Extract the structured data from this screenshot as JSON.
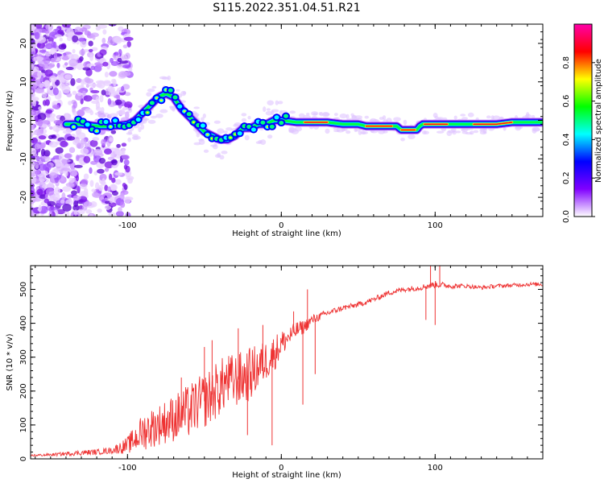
{
  "figure_title": "S115.2022.351.04.51.R21",
  "chart_data": [
    {
      "type": "heatmap",
      "title": "",
      "xlabel": "Height of straight line (km)",
      "ylabel": "Frequency (Hz)",
      "xlim": [
        -163,
        170
      ],
      "ylim": [
        -25,
        25
      ],
      "xticks": [
        -100,
        0,
        100
      ],
      "xtick_labels": [
        "-100",
        "0",
        "100"
      ],
      "yticks": [
        -20,
        -10,
        0,
        10,
        20
      ],
      "ytick_labels": [
        "-20",
        "-10",
        "0",
        "10",
        "20"
      ],
      "grid": false,
      "ridge": {
        "x": [
          -140,
          -130,
          -120,
          -110,
          -100,
          -95,
          -90,
          -85,
          -80,
          -75,
          -70,
          -65,
          -60,
          -55,
          -50,
          -45,
          -40,
          -35,
          -30,
          -25,
          -20,
          -15,
          -10,
          -5,
          0,
          10,
          20,
          30,
          40,
          50,
          55,
          60,
          65,
          70,
          75,
          78,
          80,
          85,
          88,
          90,
          92,
          95,
          100,
          110,
          120,
          130,
          140,
          150,
          160,
          170
        ],
        "y": [
          -1,
          -1,
          -1.5,
          -1.5,
          -1,
          0,
          2,
          4,
          6,
          7,
          6,
          3,
          1,
          -1,
          -3,
          -4,
          -5,
          -5,
          -4,
          -2,
          -2,
          -1,
          -1,
          0,
          0,
          -0.5,
          -0.5,
          -0.5,
          -1,
          -1,
          -1.5,
          -1.5,
          -1.5,
          -1.5,
          -1.5,
          -2.5,
          -2.5,
          -2.5,
          -2.5,
          -1.5,
          -1,
          -1,
          -1,
          -1,
          -1,
          -1,
          -1,
          -0.5,
          -0.5,
          -0.5
        ]
      },
      "colorbar": {
        "label": "Normalized spectral amplitude",
        "range": [
          0,
          1
        ],
        "ticks": [
          0,
          0.2,
          0.4,
          0.6,
          0.8
        ],
        "tick_labels": [
          "0.0",
          "0.2",
          "0.4",
          "0.6",
          "0.8"
        ],
        "colormap": [
          "#ffffff",
          "#8000ff",
          "#0000ff",
          "#00ffff",
          "#00ff00",
          "#ffff00",
          "#ff0000",
          "#ff00aa"
        ]
      }
    },
    {
      "type": "line",
      "title": "",
      "xlabel": "Height of straight line (km)",
      "ylabel": "SNR (10 * v/v)",
      "xlim": [
        -163,
        170
      ],
      "ylim": [
        0,
        570
      ],
      "xticks": [
        -100,
        0,
        100
      ],
      "xtick_labels": [
        "-100",
        "0",
        "100"
      ],
      "yticks": [
        0,
        100,
        200,
        300,
        400,
        500
      ],
      "ytick_labels": [
        "0",
        "100",
        "200",
        "300",
        "400",
        "500"
      ],
      "grid": false,
      "series": [
        {
          "name": "",
          "color": "#ee3333",
          "x": [
            -163,
            -150,
            -140,
            -130,
            -120,
            -110,
            -100,
            -95,
            -90,
            -85,
            -80,
            -75,
            -70,
            -65,
            -60,
            -55,
            -50,
            -45,
            -40,
            -35,
            -30,
            -25,
            -20,
            -15,
            -10,
            -5,
            0,
            5,
            10,
            15,
            20,
            25,
            30,
            40,
            50,
            60,
            65,
            70,
            80,
            90,
            95,
            100,
            110,
            120,
            130,
            140,
            150,
            160,
            170
          ],
          "y": [
            10,
            12,
            15,
            18,
            20,
            25,
            40,
            60,
            80,
            90,
            100,
            110,
            120,
            130,
            140,
            160,
            170,
            190,
            210,
            230,
            230,
            240,
            250,
            270,
            290,
            310,
            340,
            360,
            380,
            390,
            410,
            420,
            430,
            445,
            455,
            470,
            480,
            490,
            500,
            505,
            510,
            515,
            510,
            510,
            505,
            510,
            512,
            515,
            515
          ],
          "noise": [
            3,
            4,
            6,
            8,
            8,
            10,
            25,
            40,
            55,
            60,
            60,
            65,
            70,
            75,
            80,
            80,
            80,
            85,
            85,
            80,
            80,
            80,
            80,
            70,
            60,
            55,
            40,
            30,
            25,
            20,
            15,
            12,
            10,
            8,
            8,
            8,
            8,
            8,
            8,
            8,
            10,
            10,
            8,
            6,
            6,
            6,
            6,
            6,
            6
          ],
          "spikes": [
            {
              "x": -65,
              "y": 240
            },
            {
              "x": -50,
              "y": 330
            },
            {
              "x": -45,
              "y": 350
            },
            {
              "x": -28,
              "y": 385
            },
            {
              "x": -22,
              "y": 70
            },
            {
              "x": -12,
              "y": 395
            },
            {
              "x": -6,
              "y": 40
            },
            {
              "x": 8,
              "y": 435
            },
            {
              "x": 14,
              "y": 160
            },
            {
              "x": 17,
              "y": 500
            },
            {
              "x": 22,
              "y": 250
            },
            {
              "x": 94,
              "y": 410
            },
            {
              "x": 97,
              "y": 570
            },
            {
              "x": 100,
              "y": 395
            },
            {
              "x": 103,
              "y": 570
            }
          ]
        }
      ]
    }
  ]
}
